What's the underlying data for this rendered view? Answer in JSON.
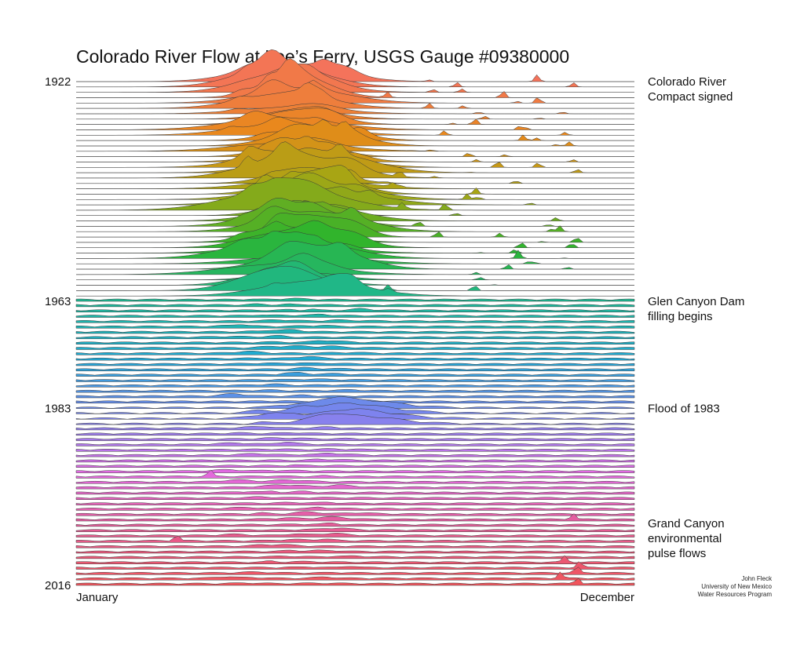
{
  "chart_data": {
    "type": "area",
    "subtype": "ridgeline",
    "title": "Colorado River Flow at Lee’s Ferry, USGS Gauge #09380000",
    "x_start_label": "January",
    "x_end_label": "December",
    "year_range": [
      1922,
      2016
    ],
    "labeled_years": [
      "1922",
      "1963",
      "1983",
      "2016"
    ],
    "annotations": [
      {
        "year": 1922,
        "lines": [
          "Colorado River",
          "Compact signed"
        ]
      },
      {
        "year": 1963,
        "lines": [
          "Glen Canyon Dam",
          "filling begins"
        ]
      },
      {
        "year": 1983,
        "lines": [
          "Flood of 1983"
        ]
      },
      {
        "year": 2016,
        "lines": [
          "Grand Canyon",
          "environmental",
          "pulse flows"
        ]
      }
    ],
    "credit_lines": [
      "John Fleck",
      "University of New Mexico",
      "Water Resources Program"
    ],
    "color_ramp": [
      "#f4735b",
      "#e8891a",
      "#a9a514",
      "#2db52d",
      "#1db89a",
      "#22a8d6",
      "#7b84ee",
      "#e36ae3",
      "#e45c95",
      "#f0555c"
    ],
    "grid": false,
    "legend": "none"
  }
}
